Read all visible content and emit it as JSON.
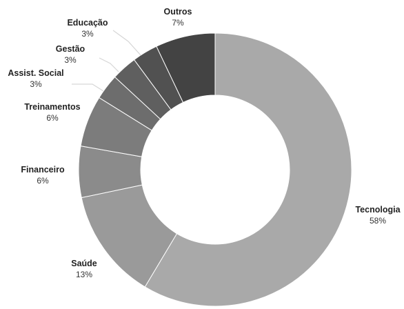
{
  "chart_data": {
    "type": "pie",
    "variant": "donut",
    "title": "",
    "legend": "none",
    "slices": [
      {
        "label": "Tecnologia",
        "value": 58,
        "value_label": "58%",
        "color": "#a9a9a9"
      },
      {
        "label": "Saúde",
        "value": 13,
        "value_label": "13%",
        "color": "#9a9a9a"
      },
      {
        "label": "Financeiro",
        "value": 6,
        "value_label": "6%",
        "color": "#8b8b8b"
      },
      {
        "label": "Treinamentos",
        "value": 6,
        "value_label": "6%",
        "color": "#7c7c7c"
      },
      {
        "label": "Assist. Social",
        "value": 3,
        "value_label": "3%",
        "color": "#6d6d6d"
      },
      {
        "label": "Gestão",
        "value": 3,
        "value_label": "3%",
        "color": "#5f5f5f"
      },
      {
        "label": "Educação",
        "value": 3,
        "value_label": "3%",
        "color": "#515151"
      },
      {
        "label": "Outros",
        "value": 7,
        "value_label": "7%",
        "color": "#434343"
      }
    ]
  }
}
